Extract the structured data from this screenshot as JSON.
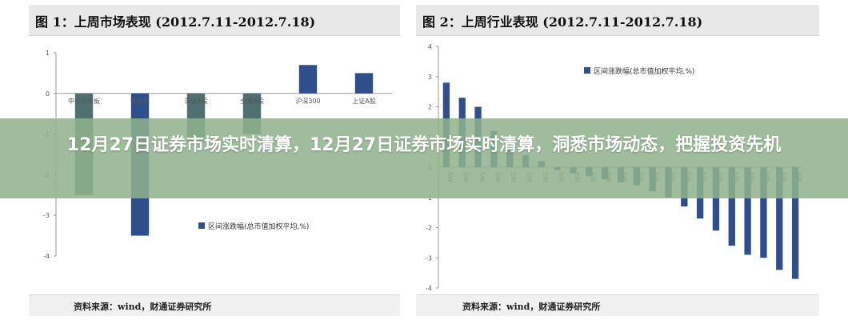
{
  "banner": {
    "headline": "12月27日证券市场实时清算，12月27日证券市场实时清算，洞悉市场动态，把握投资先机"
  },
  "colors": {
    "bar_primary": "#2e4f8c",
    "bar_secondary": "#4f6f70",
    "banner_bg": "#8fb28c"
  },
  "chart_data": [
    {
      "type": "bar",
      "title": "图 1：上周市场表现 (2012.7.11-2012.7.18)",
      "categories": [
        "中小企业板",
        "创业板",
        "深证A股",
        "全部A股",
        "沪深300",
        "上证A股"
      ],
      "series": [
        {
          "name": "区间涨跌幅(总市值加权平均,%)",
          "values": [
            -2.5,
            -3.5,
            -1.2,
            -1.0,
            0.7,
            0.5
          ]
        }
      ],
      "yticks": [
        "1",
        "0",
        "-1",
        "-2",
        "-3",
        "-4"
      ],
      "ylim": [
        -4,
        1
      ],
      "legend_position": "bottom-right",
      "source": "资料来源：wind，财通证券研究所"
    },
    {
      "type": "bar",
      "title": "图 2：上周行业表现 (2012.7.11-2012.7.18)",
      "categories": [
        "SW",
        "SW",
        "SW",
        "SW",
        "SW",
        "SW",
        "SW",
        "SW",
        "SW",
        "SW",
        "SW",
        "SW",
        "SW",
        "SW",
        "SW",
        "SW",
        "SW",
        "SW",
        "SW",
        "SW",
        "SW",
        "SW",
        "SW"
      ],
      "series": [
        {
          "name": "区间涨跌幅(总市值加权平均,%)",
          "values": [
            2.8,
            2.3,
            2.0,
            1.2,
            0.8,
            0.4,
            0.2,
            -0.1,
            -0.2,
            -0.3,
            -0.4,
            -0.5,
            -0.6,
            -0.8,
            -1.0,
            -1.3,
            -1.7,
            -2.1,
            -2.6,
            -2.9,
            -3.0,
            -3.4,
            -3.7
          ]
        }
      ],
      "yticks": [
        "4",
        "3",
        "2",
        "1",
        "0",
        "-1",
        "-2",
        "-3",
        "-4"
      ],
      "ylim": [
        -4,
        4
      ],
      "legend_position": "top-right",
      "source": "资料来源：wind，财通证券研究所"
    }
  ]
}
